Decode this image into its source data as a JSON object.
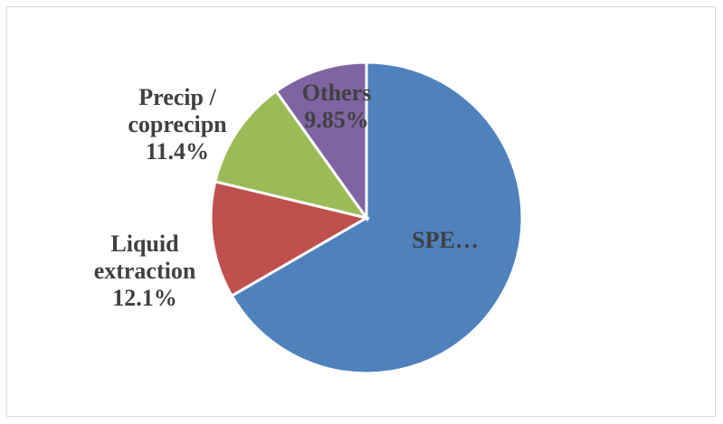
{
  "chart_data": {
    "type": "pie",
    "categories": [
      "SPE…",
      "Liquid extraction",
      "Precip / coprecipn",
      "Others"
    ],
    "values": [
      66.65,
      12.1,
      11.4,
      9.85
    ],
    "value_labels": [
      null,
      "12.1%",
      "11.4%",
      "9.85%"
    ],
    "colors": [
      "#4f81bd",
      "#c0504d",
      "#9bbb59",
      "#8064a2"
    ]
  }
}
